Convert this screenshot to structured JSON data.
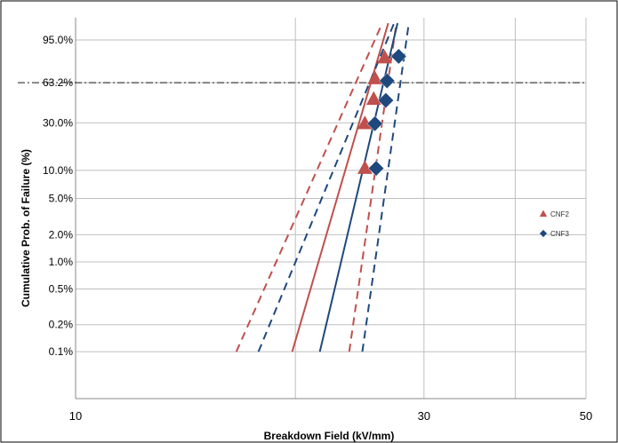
{
  "chart_data": {
    "type": "scatter",
    "title": "",
    "xlabel": "Breakdown  Field (kV/mm)",
    "ylabel": "Cumulative Prob. of Failure (%)",
    "x_scale": "log",
    "y_scale": "weibull",
    "xlim": [
      10,
      50
    ],
    "x_ticks": [
      10,
      30,
      50
    ],
    "x_tick_labels": [
      "10",
      "30",
      "50"
    ],
    "x_gridlines": [
      20,
      30,
      40,
      50
    ],
    "y_ticks": [
      0.1,
      0.2,
      0.5,
      1.0,
      2.0,
      5.0,
      10.0,
      30.0,
      63.2,
      95.0
    ],
    "y_tick_labels": [
      "0.1%",
      "0.2%",
      "0.5%",
      "1.0%",
      "2.0%",
      "5.0%",
      "10.0%",
      "30.0%",
      "63.2%",
      "95.0%"
    ],
    "ylim_percent": [
      0.03,
      99.5
    ],
    "grid": true,
    "legend_position": "right",
    "reference_line": {
      "y": 63.2,
      "style": "dash-dot"
    },
    "series": [
      {
        "name": "CNF2",
        "color": "#c0504d",
        "marker": "triangle",
        "points": [
          [
            24.9,
            10.5
          ],
          [
            24.9,
            29.5
          ],
          [
            25.6,
            48.0
          ],
          [
            25.7,
            67.0
          ],
          [
            26.5,
            85.0
          ]
        ],
        "fit_line": [
          [
            19.8,
            0.1
          ],
          [
            26.8,
            99.0
          ]
        ],
        "confidence_bounds": [
          [
            [
              16.6,
              0.1
            ],
            [
              26.3,
              99.0
            ]
          ],
          [
            [
              23.7,
              0.1
            ],
            [
              27.5,
              99.0
            ]
          ]
        ]
      },
      {
        "name": "CNF3",
        "color": "#1f497d",
        "marker": "diamond",
        "points": [
          [
            25.8,
            10.5
          ],
          [
            25.7,
            29.5
          ],
          [
            26.6,
            47.0
          ],
          [
            26.7,
            65.0
          ],
          [
            27.7,
            86.0
          ]
        ],
        "fit_line": [
          [
            21.6,
            0.1
          ],
          [
            27.6,
            99.0
          ]
        ],
        "confidence_bounds": [
          [
            [
              17.8,
              0.1
            ],
            [
              27.3,
              99.0
            ]
          ],
          [
            [
              24.7,
              0.1
            ],
            [
              28.6,
              99.0
            ]
          ]
        ]
      }
    ]
  }
}
